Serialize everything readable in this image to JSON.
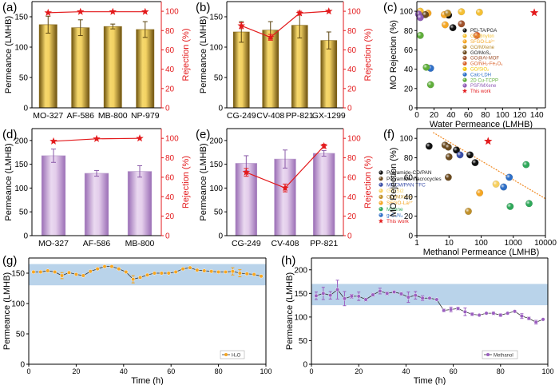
{
  "chart_data": [
    {
      "id": "a",
      "panel_label": "(a)",
      "type": "bar",
      "bar_style": "gold",
      "categories": [
        "MO-327",
        "AF-586",
        "MB-800",
        "NP-979"
      ],
      "series": [
        {
          "name": "Permeance",
          "axis": "left",
          "values": [
            137,
            132,
            134,
            129
          ],
          "errors": [
            14,
            13,
            4,
            13
          ]
        },
        {
          "name": "Rejection",
          "axis": "right",
          "type": "line",
          "values": [
            98.5,
            99.5,
            99.5,
            99.5
          ],
          "errors": [
            0,
            0,
            0,
            0
          ]
        }
      ],
      "ylabel": "Permeance (LMHB)",
      "y2label": "Rejection (%)",
      "ylim": [
        0,
        175
      ],
      "y2lim": [
        0,
        110
      ],
      "yticks": [
        "0",
        "50",
        "100",
        "150"
      ],
      "y2ticks": [
        "0",
        "20",
        "40",
        "60",
        "80",
        "100"
      ]
    },
    {
      "id": "b",
      "panel_label": "(b)",
      "type": "bar",
      "bar_style": "gold",
      "categories": [
        "CG-249",
        "CV-408",
        "PP-821",
        "GX-1299"
      ],
      "series": [
        {
          "name": "Permeance",
          "axis": "left",
          "values": [
            125,
            128,
            136,
            111
          ],
          "errors": [
            17,
            14,
            21,
            14
          ]
        },
        {
          "name": "Rejection",
          "axis": "right",
          "type": "line",
          "values": [
            85,
            73,
            98,
            100
          ],
          "errors": [
            3,
            3,
            2,
            0
          ]
        }
      ],
      "ylabel": "Permeance (LMHB)",
      "y2label": "Rejection (%)",
      "ylim": [
        0,
        175
      ],
      "y2lim": [
        0,
        110
      ],
      "yticks": [
        "0",
        "50",
        "100",
        "150"
      ],
      "y2ticks": [
        "0",
        "20",
        "40",
        "60",
        "80",
        "100"
      ]
    },
    {
      "id": "c",
      "panel_label": "(c)",
      "type": "scatter",
      "xscale": "linear",
      "xlabel": "Water Permeance (LMHB)",
      "ylabel": "MO Rejection (%)",
      "xlim": [
        0,
        150
      ],
      "ylim": [
        0,
        110
      ],
      "xticks": [
        "0",
        "20",
        "40",
        "60",
        "80",
        "100",
        "120",
        "140"
      ],
      "yticks": [
        "0",
        "20",
        "40",
        "60",
        "80",
        "100"
      ],
      "legend_position": "right",
      "series": [
        {
          "name": "PEI-TA/PGA",
          "color": "#111111",
          "points": [
            [
              37,
              96
            ],
            [
              42,
              83
            ]
          ]
        },
        {
          "name": "GO@nylon",
          "color": "#f5c033",
          "points": [
            [
              4,
              100
            ],
            [
              52,
              99.5
            ],
            [
              73,
              99
            ]
          ]
        },
        {
          "name": "SFGO-La³⁺",
          "color": "#f5a623",
          "points": [
            [
              13,
              98
            ],
            [
              32,
              96.5
            ],
            [
              33,
              86
            ]
          ]
        },
        {
          "name": "GO/MXene",
          "color": "#b8892a",
          "points": [
            [
              36,
              98
            ]
          ]
        },
        {
          "name": "GO/MoS₂",
          "color": "#6b4a1e",
          "points": [
            [
              10,
              96.5
            ]
          ]
        },
        {
          "name": "GO@Al-MOF",
          "color": "#a0522d",
          "points": [
            [
              52,
              87
            ]
          ]
        },
        {
          "name": "GO/NH₂-Fe₃O₄",
          "color": "#d9622b",
          "points": [
            [
              70,
              75
            ]
          ]
        },
        {
          "name": "GO/SiO₂",
          "color": "#f2c400",
          "points": []
        },
        {
          "name": "Calc-LDH",
          "color": "#2e6fc7",
          "points": [
            [
              16,
              41
            ]
          ]
        },
        {
          "name": "2D Cu-TCPP",
          "color": "#5fae3a",
          "points": [
            [
              4,
              75
            ],
            [
              11,
              42
            ],
            [
              16,
              24
            ]
          ]
        },
        {
          "name": "PSF/MXene",
          "color": "#8e5bb5",
          "points": [
            [
              2,
              97
            ],
            [
              4,
              93.5
            ]
          ]
        },
        {
          "name": "This work",
          "color": "#e31a1c",
          "marker": "star",
          "points": [
            [
              137,
              98.5
            ]
          ]
        }
      ]
    },
    {
      "id": "d",
      "panel_label": "(d)",
      "type": "bar",
      "bar_style": "purple",
      "categories": [
        "MO-327",
        "AF-586",
        "MB-800"
      ],
      "series": [
        {
          "name": "Permeance",
          "axis": "left",
          "values": [
            168,
            131,
            135
          ],
          "errors": [
            14,
            6,
            12
          ]
        },
        {
          "name": "Rejection",
          "axis": "right",
          "type": "line",
          "values": [
            97,
            99.5,
            100
          ],
          "errors": [
            0,
            0,
            0
          ]
        }
      ],
      "ylabel": "Permeance (LMHB)",
      "y2label": "Rejection (%)",
      "ylim": [
        0,
        225
      ],
      "y2lim": [
        0,
        110
      ],
      "yticks": [
        "0",
        "50",
        "100",
        "150",
        "200"
      ],
      "y2ticks": [
        "0",
        "20",
        "40",
        "60",
        "80",
        "100"
      ]
    },
    {
      "id": "e",
      "panel_label": "(e)",
      "type": "bar",
      "bar_style": "purple",
      "categories": [
        "CG-249",
        "CV-408",
        "PP-821"
      ],
      "series": [
        {
          "name": "Permeance",
          "axis": "left",
          "values": [
            152,
            161,
            173
          ],
          "errors": [
            16,
            19,
            6
          ]
        },
        {
          "name": "Rejection",
          "axis": "right",
          "type": "line",
          "values": [
            65,
            49,
            92
          ],
          "errors": [
            4,
            4,
            2
          ]
        }
      ],
      "ylabel": "Permeance (LMHB)",
      "y2label": "Rejection (%)",
      "ylim": [
        0,
        225
      ],
      "y2lim": [
        0,
        110
      ],
      "yticks": [
        "0",
        "50",
        "100",
        "150",
        "200"
      ],
      "y2ticks": [
        "0",
        "20",
        "40",
        "60",
        "80",
        "100"
      ]
    },
    {
      "id": "f",
      "panel_label": "(f)",
      "type": "scatter",
      "xscale": "log",
      "xlabel": "Methanol Permeance (LMHB)",
      "ylabel": "MO Rejection (%)",
      "xlim": [
        1,
        10000
      ],
      "ylim": [
        0,
        110
      ],
      "xticks": [
        "1",
        "10",
        "100",
        "1000",
        "10000"
      ],
      "yticks": [
        "0",
        "20",
        "40",
        "60",
        "80",
        "100"
      ],
      "legend_position": "bottom-left",
      "trendline": {
        "color": "#f08a24",
        "from": [
          3.2,
          106
        ],
        "to": [
          10000,
          38
        ]
      },
      "series": [
        {
          "name": "Polyamide-CD/PAN",
          "color": "#111111",
          "points": [
            [
              2.4,
              92
            ],
            [
              17,
              88
            ],
            [
              45,
              83
            ],
            [
              65,
              75
            ]
          ]
        },
        {
          "name": "Polyamide-macrocycles",
          "color": "#6b4a1e",
          "points": [
            [
              7.5,
              93
            ],
            [
              9.5,
              91
            ],
            [
              10,
              81
            ],
            [
              9.5,
              60
            ]
          ]
        },
        {
          "name": "MPCM/PAN TFC",
          "color": "#3b4fa8",
          "points": [
            [
              22,
              83
            ]
          ]
        },
        {
          "name": "GO-Si2",
          "color": "#f7d060",
          "points": [
            [
              290,
              53
            ]
          ]
        },
        {
          "name": "GO/MXene",
          "color": "#c0902a",
          "points": [
            [
              40,
              25
            ]
          ]
        },
        {
          "name": "SFGO-La³⁺",
          "color": "#f5a623",
          "points": [
            [
              90,
              44
            ]
          ]
        },
        {
          "name": "MXene",
          "color": "#2fa85a",
          "points": [
            [
              2500,
              73
            ],
            [
              800,
              30
            ],
            [
              3100,
              33
            ]
          ]
        },
        {
          "name": "g-C₃N₄",
          "color": "#2e6fc7",
          "points": [
            [
              750,
              60
            ],
            [
              500,
              50
            ]
          ]
        },
        {
          "name": "This work",
          "color": "#e31a1c",
          "marker": "star",
          "points": [
            [
              165,
              97
            ]
          ]
        }
      ]
    },
    {
      "id": "g",
      "panel_label": "(g)",
      "type": "line",
      "xlabel": "Time (h)",
      "ylabel": "Permeance (LMHB)",
      "xlim": [
        0,
        100
      ],
      "ylim": [
        0,
        175
      ],
      "xticks": [
        "0",
        "20",
        "40",
        "60",
        "80",
        "100"
      ],
      "yticks": [
        "0",
        "50",
        "100",
        "150"
      ],
      "band": [
        130,
        165
      ],
      "legend_position": "bottom-right",
      "series": [
        {
          "name": "H₂O",
          "color": "#f5a623",
          "x": [
            2,
            5,
            8,
            11,
            14,
            17,
            20,
            23,
            26,
            29,
            32,
            35,
            38,
            41,
            44,
            47,
            50,
            53,
            56,
            59,
            62,
            65,
            68,
            71,
            74,
            77,
            80,
            83,
            86,
            89,
            92,
            95,
            98
          ],
          "values": [
            152,
            152,
            154,
            152,
            146,
            151,
            148,
            146,
            153,
            157,
            161,
            161,
            157,
            152,
            140,
            143,
            147,
            150,
            150,
            150,
            152,
            157,
            159,
            155,
            154,
            153,
            152,
            152,
            153,
            150,
            149,
            148,
            145
          ],
          "errors": [
            0,
            0,
            0,
            0,
            5,
            0,
            0,
            0,
            0,
            0,
            0,
            0,
            0,
            0,
            6,
            0,
            0,
            0,
            0,
            0,
            0,
            0,
            0,
            0,
            0,
            0,
            0,
            0,
            6,
            6,
            0,
            0,
            0
          ]
        }
      ]
    },
    {
      "id": "h",
      "panel_label": "(h)",
      "type": "line",
      "xlabel": "Time (h)",
      "ylabel": "Permeance (LMHB)",
      "xlim": [
        0,
        100
      ],
      "ylim": [
        0,
        225
      ],
      "xticks": [
        "0",
        "20",
        "40",
        "60",
        "80",
        "100"
      ],
      "yticks": [
        "0",
        "50",
        "100",
        "150",
        "200"
      ],
      "band": [
        125,
        170
      ],
      "legend_position": "bottom-right",
      "series": [
        {
          "name": "Methanol",
          "color": "#9b5fc0",
          "x": [
            2,
            5,
            8,
            11,
            14,
            17,
            20,
            23,
            26,
            29,
            32,
            35,
            38,
            41,
            44,
            47,
            50,
            53,
            56,
            59,
            62,
            65,
            68,
            71,
            74,
            77,
            80,
            83,
            86,
            89,
            92,
            95,
            98
          ],
          "values": [
            145,
            150,
            146,
            158,
            139,
            144,
            144,
            137,
            147,
            155,
            150,
            153,
            149,
            142,
            146,
            140,
            140,
            137,
            114,
            116,
            118,
            111,
            106,
            104,
            108,
            108,
            104,
            108,
            112,
            102,
            97,
            89,
            95
          ],
          "errors": [
            8,
            13,
            8,
            20,
            15,
            4,
            9,
            3,
            3,
            6,
            3,
            0,
            3,
            11,
            8,
            5,
            0,
            0,
            3,
            5,
            3,
            8,
            3,
            0,
            0,
            3,
            3,
            0,
            0,
            5,
            3,
            4,
            0
          ]
        }
      ]
    }
  ],
  "colors": {
    "red_axis": "#e31a1c",
    "gold_bar_dark": "#7a5c10",
    "gold_bar_light": "#f3d56a",
    "purple_bar_dark": "#9d73b8",
    "purple_bar_light": "#e6d4ee",
    "band": "#b9d3ea"
  }
}
